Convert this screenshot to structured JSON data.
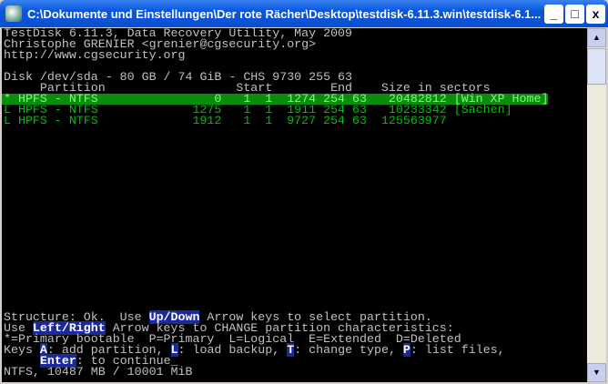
{
  "window": {
    "title": "C:\\Dokumente und Einstellungen\\Der rote Rächer\\Desktop\\testdisk-6.11.3.win\\testdisk-6.1...",
    "minimize": "_",
    "maximize": "□",
    "close": "x"
  },
  "terminal": {
    "header": [
      "TestDisk 6.11.3, Data Recovery Utility, May 2009",
      "Christophe GRENIER <grenier@cgsecurity.org>",
      "http://www.cgsecurity.org"
    ],
    "disk": "Disk /dev/sda - 80 GB / 74 GiB - CHS 9730 255 63",
    "columns": "     Partition                  Start        End    Size in sectors",
    "partitions": [
      "* HPFS - NTFS                0   1  1  1274 254 63   20482812 [Win XP Home]",
      "L HPFS - NTFS             1275   1  1  1911 254 63   10233342 [Sachen]",
      "L HPFS - NTFS             1912   1  1  9727 254 63  125563977"
    ],
    "footer": {
      "l1a": "Structure: Ok.  Use ",
      "l1k": "Up/Down",
      "l1b": " Arrow keys to select partition.",
      "l2a": "Use ",
      "l2k": "Left/Right",
      "l2b": " Arrow keys to CHANGE partition characteristics:",
      "l3": "*=Primary bootable  P=Primary  L=Logical  E=Extended  D=Deleted",
      "l4a": "Keys ",
      "l4k1": "A",
      "l4b": ": add partition, ",
      "l4k2": "L",
      "l4c": ": load backup, ",
      "l4k3": "T",
      "l4d": ": change type, ",
      "l4k4": "P",
      "l4e": ": list files,",
      "l5a": "     ",
      "l5k": "Enter",
      "l5b": ": to continue_",
      "l6": "NTFS, 10487 MB / 10001 MiB"
    }
  },
  "colors": {
    "selected_bg": "#0c8c0c",
    "partition_text": "#00c000",
    "terminal_bg": "#000000"
  }
}
